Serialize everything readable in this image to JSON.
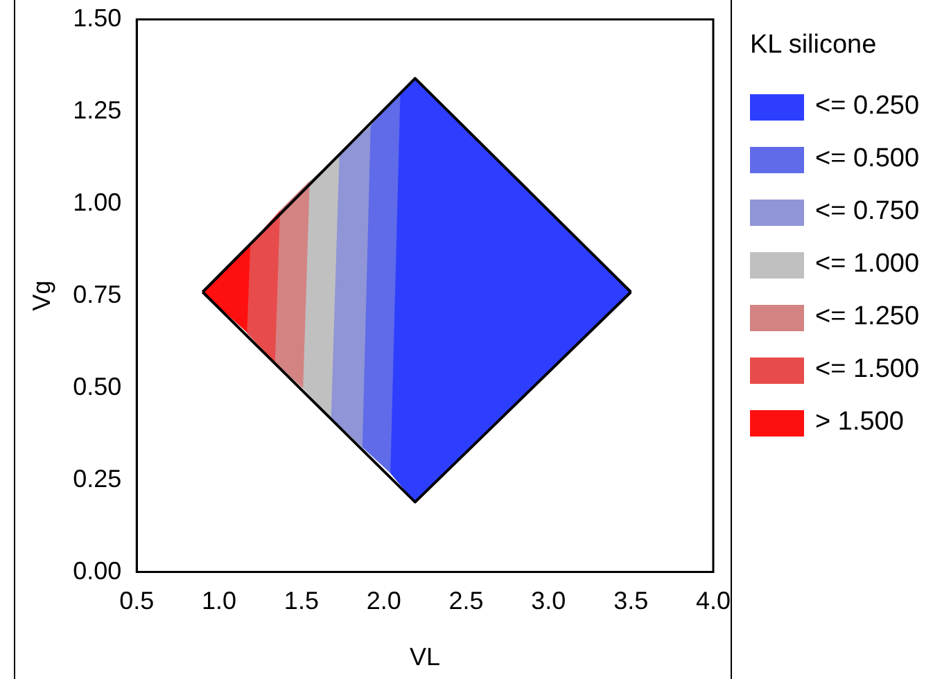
{
  "chart_data": {
    "type": "area",
    "xlabel": "VL",
    "ylabel": "Vg",
    "legend_title": "KL silicone",
    "legend": "right",
    "grid": false,
    "xlim": [
      0.5,
      4.0
    ],
    "xticks": [
      {
        "value": 0.5,
        "label": "0.5"
      },
      {
        "value": 1.0,
        "label": "1.0"
      },
      {
        "value": 1.5,
        "label": "1.5"
      },
      {
        "value": 2.0,
        "label": "2.0"
      },
      {
        "value": 2.5,
        "label": "2.5"
      },
      {
        "value": 3.0,
        "label": "3.0"
      },
      {
        "value": 3.5,
        "label": "3.5"
      },
      {
        "value": 4.0,
        "label": "4.0"
      }
    ],
    "ylim": [
      0,
      1.5
    ],
    "yticks": [
      {
        "value": 0,
        "label": "0.00"
      },
      {
        "value": 0.25,
        "label": "0.25"
      },
      {
        "value": 0.5,
        "label": "0.50"
      },
      {
        "value": 0.75,
        "label": "0.75"
      },
      {
        "value": 1.0,
        "label": "1.00"
      },
      {
        "value": 1.25,
        "label": "1.25"
      },
      {
        "value": 1.5,
        "label": "1.50"
      }
    ],
    "series": [
      {
        "name": "<= 0.250",
        "color": "#2e3eff",
        "x": [
          2.1,
          2.19,
          3.5,
          2.19,
          2.04
        ],
        "values": [
          1.3,
          1.34,
          0.76,
          0.19,
          0.27
        ]
      },
      {
        "name": "<= 0.500",
        "color": "#5f6be8",
        "x": [
          1.92,
          2.1,
          2.04,
          1.87
        ],
        "values": [
          1.21,
          1.3,
          0.27,
          0.34
        ]
      },
      {
        "name": "<= 0.750",
        "color": "#8f95d6",
        "x": [
          1.73,
          1.92,
          1.87,
          1.68
        ],
        "values": [
          1.13,
          1.21,
          0.34,
          0.42
        ]
      },
      {
        "name": "<= 1.000",
        "color": "#c0c0c0",
        "x": [
          1.55,
          1.73,
          1.68,
          1.51
        ],
        "values": [
          1.06,
          1.13,
          0.42,
          0.5
        ]
      },
      {
        "name": "<= 1.250",
        "color": "#d48383",
        "x": [
          1.37,
          1.55,
          1.51,
          1.34
        ],
        "values": [
          0.98,
          1.06,
          0.5,
          0.57
        ]
      },
      {
        "name": "<= 1.500",
        "color": "#e84b4b",
        "x": [
          1.19,
          1.37,
          1.34,
          1.17
        ],
        "values": [
          0.89,
          0.98,
          0.57,
          0.65
        ]
      },
      {
        "name": "> 1.500",
        "color": "#ff1010",
        "x": [
          0.9,
          1.19,
          1.17
        ],
        "values": [
          0.76,
          0.89,
          0.65
        ]
      },
      {
        "type": "line",
        "color": "#000000",
        "x": [
          0.9,
          2.19,
          3.5
        ],
        "values": [
          0.76,
          1.34,
          0.76
        ]
      },
      {
        "type": "line",
        "color": "#000000",
        "x": [
          0.9,
          2.19,
          3.5
        ],
        "values": [
          0.76,
          0.19,
          0.76
        ]
      }
    ]
  }
}
